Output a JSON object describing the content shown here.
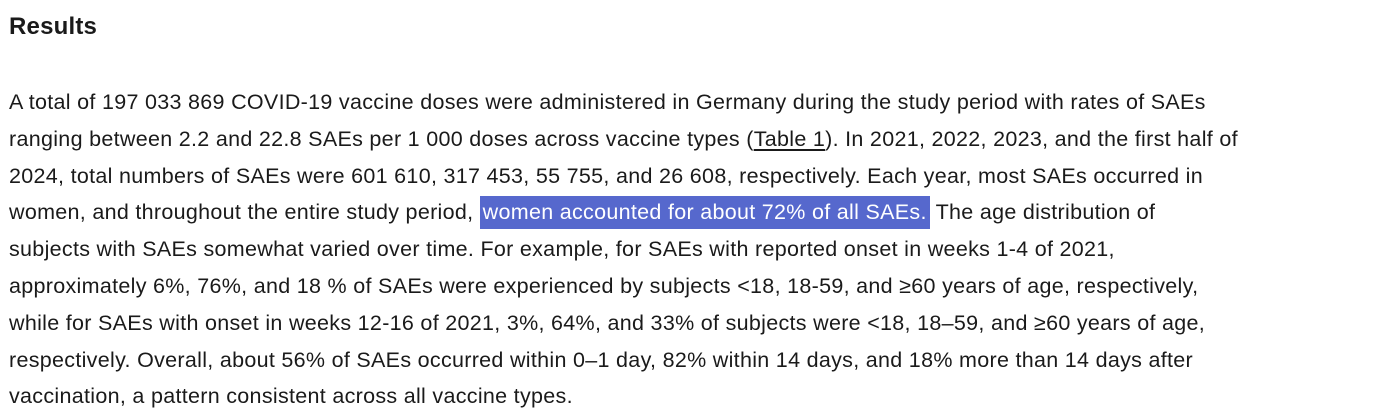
{
  "colors": {
    "text": "#1a1a1a",
    "bg": "#ffffff",
    "highlight-bg": "#5668cd",
    "highlight-fg": "#ffffff"
  },
  "content": {
    "heading": "Results",
    "lines": [
      {
        "s": [
          "A total of 197 033 869 COVID-19 vaccine doses were administered in Germany during the study period with rates of SAEs"
        ]
      },
      {
        "s": [
          "ranging between 2.2 and 22.8 SAEs per 1 000 doses across vaccine types (",
          "Table 1",
          "). In 2021, 2022, 2023, and the first half of"
        ]
      },
      {
        "s": [
          "2024, total numbers of SAEs were 601 610, 317 453, 55 755, and 26 608, respectively. Each year, most SAEs occurred in"
        ]
      },
      {
        "s": [
          "women, and throughout the entire study period, ",
          "women accounted for about 72% of all SAEs.",
          " The age distribution of"
        ]
      },
      {
        "s": [
          "subjects with SAEs somewhat varied over time. For example, for SAEs with reported onset in weeks 1-4 of 2021,"
        ]
      },
      {
        "s": [
          "approximately 6%, 76%, and 18 % of SAEs were experienced by subjects <18, 18-59, and ≥60 years of age, respectively,"
        ]
      },
      {
        "s": [
          "while for SAEs with onset in weeks 12-16 of 2021, 3%, 64%, and 33% of subjects were <18, 18–59, and ≥60 years of age,"
        ]
      },
      {
        "s": [
          "respectively. Overall, about 56% of SAEs occurred within 0–1 day, 82% within 14 days, and 18% more than 14 days after"
        ]
      },
      {
        "s": [
          "vaccination, a pattern consistent across all vaccine types."
        ]
      }
    ]
  }
}
